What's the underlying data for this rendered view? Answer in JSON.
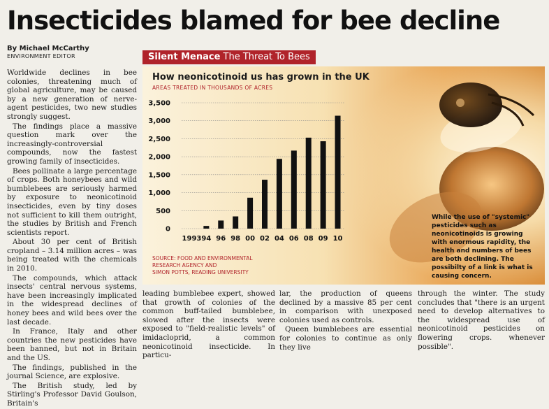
{
  "article": {
    "headline": "Insecticides blamed for bee decline",
    "byline": "By Michael McCarthy",
    "role": "ENVIRONMENT EDITOR",
    "col1": [
      "Worldwide declines in bee colonies, threatening much of global agriculture, may be caused by a new generation of nerve-agent pesticides, two new studies strongly suggest.",
      "The findings place a massive question mark over the increasingly-controversial compounds, now the fastest growing family of insecticides.",
      "Bees pollinate a large percentage of crops. Both honeybees and wild bumblebees are seriously harmed by exposure to neonicotinoid insecticides, even by tiny doses not sufficient to kill them outright, the studies by British and French scientists report.",
      "About 30 per cent of British cropland – 3.14 million acres – was being treated with the chemicals in 2010.",
      "The compounds, which attack insects' central nervous systems, have been increasingly implicated in the widespread declines of honey bees and wild bees over the last decade.",
      "In France, Italy and other countries the new pesticides have been banned, but not in Britain and the US.",
      "The findings, published in the journal Science, are explosive.",
      "The British study, led by Stirling's Professor David Goulson, Britain's"
    ],
    "col2": "leading bumblebee expert, showed that growth of colonies of the common buff-tailed bumblebee, slowed after the insects were exposed to \"field-realistic levels\" of imidacloprid, a common neonicotinoid insecticide. In particu-",
    "col3a": "lar, the production of queens declined by a massive 85 per cent in comparison with unexposed colonies used as controls.",
    "col3b": "Queen bumblebees are essential for colonies to continue as only they live",
    "col4": "through the winter. The study concludes that \"there is an urgent need to develop alternatives to the widespread use of neonicotinoid pesticides on flowering crops. whenever possible\"."
  },
  "banner": {
    "bold": "Silent Menace",
    "rest": "The Threat To Bees"
  },
  "caption": "While the use of \"systemic\" pesticides such as neonicotinoids is growing with enormous rapidity, the health and numbers of bees are both declining. The possibilty of a link is what is causing concern.",
  "source_lines": [
    "SOURCE: FOOD AND ENVIRONMENTAL",
    "RESEARCH AGENCY AND",
    "SIMON POTTS, READING UNIVERSITY"
  ],
  "colors": {
    "bar": "#111111",
    "accent": "#b0232a",
    "banner": "#b0232a"
  },
  "chart_data": {
    "type": "bar",
    "title": "How neonicotinoid us has grown in the UK",
    "subtitle": "AREAS TREATED IN THOUSANDS OF ACRES",
    "categories": [
      "1993",
      "94",
      "96",
      "98",
      "00",
      "02",
      "04",
      "06",
      "08",
      "09",
      "10"
    ],
    "values": [
      0,
      75,
      225,
      340,
      860,
      1360,
      1940,
      2170,
      2530,
      2430,
      3140
    ],
    "yticks": [
      0,
      500,
      1000,
      1500,
      2000,
      2500,
      3000,
      3500
    ],
    "ytick_labels": [
      "0",
      "500",
      "1,000",
      "1,500",
      "2,000",
      "2,500",
      "3,000",
      "3,500"
    ],
    "ylim": [
      0,
      3500
    ],
    "grid": true
  }
}
